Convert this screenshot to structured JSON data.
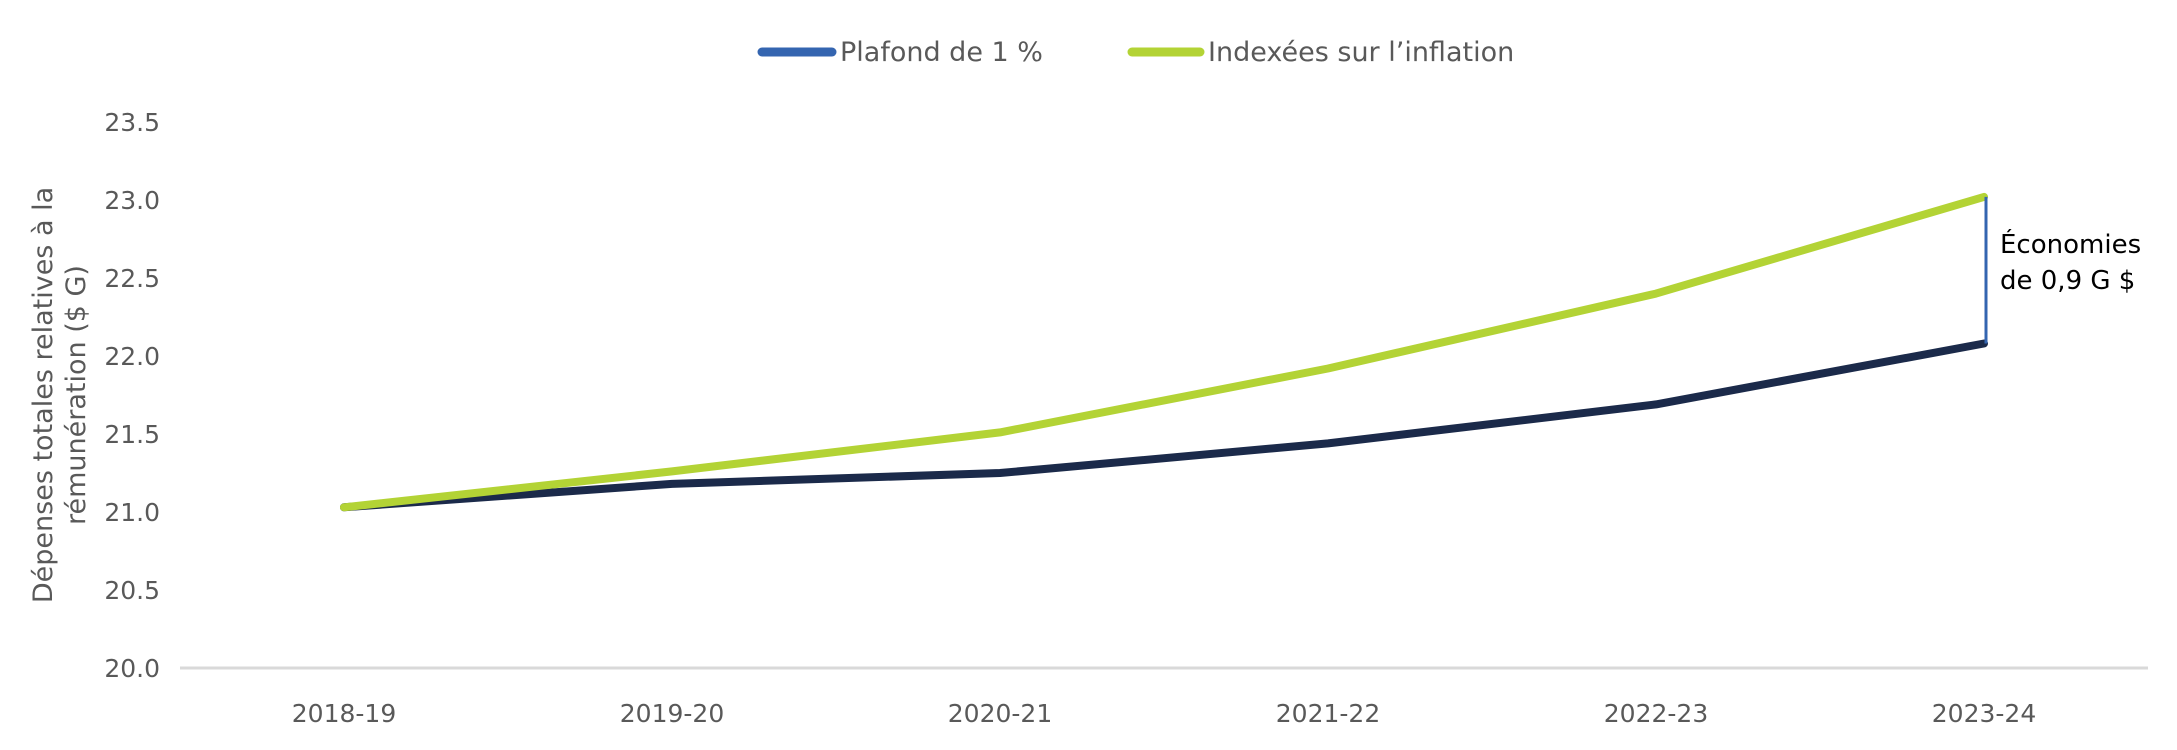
{
  "chart_data": {
    "type": "line",
    "categories": [
      "2018-19",
      "2019-20",
      "2020-21",
      "2021-22",
      "2022-23",
      "2023-24"
    ],
    "series": [
      {
        "name": "Plafond de 1 %",
        "values": [
          21.03,
          21.18,
          21.25,
          21.44,
          21.69,
          22.08
        ],
        "color": "#1b2a4a",
        "legend_color": "#3465b0"
      },
      {
        "name": "Indexées sur l’inflation",
        "values": [
          21.03,
          21.26,
          21.51,
          21.92,
          22.4,
          23.02
        ],
        "color": "#b3d335"
      }
    ],
    "ylabel_lines": [
      "Dépenses totales relatives à la",
      "rémunération ($ G)"
    ],
    "ylim": [
      20.0,
      23.5
    ],
    "yticks": [
      "20.0",
      "20.5",
      "21.0",
      "21.5",
      "22.0",
      "22.5",
      "23.0",
      "23.5"
    ],
    "grid": false,
    "legend_position": "top-center",
    "annotation": {
      "lines": [
        "Économies",
        "de 0,9 G $"
      ],
      "category": "2023-24",
      "from": 22.08,
      "to": 23.02,
      "color": "#3465b0"
    }
  }
}
